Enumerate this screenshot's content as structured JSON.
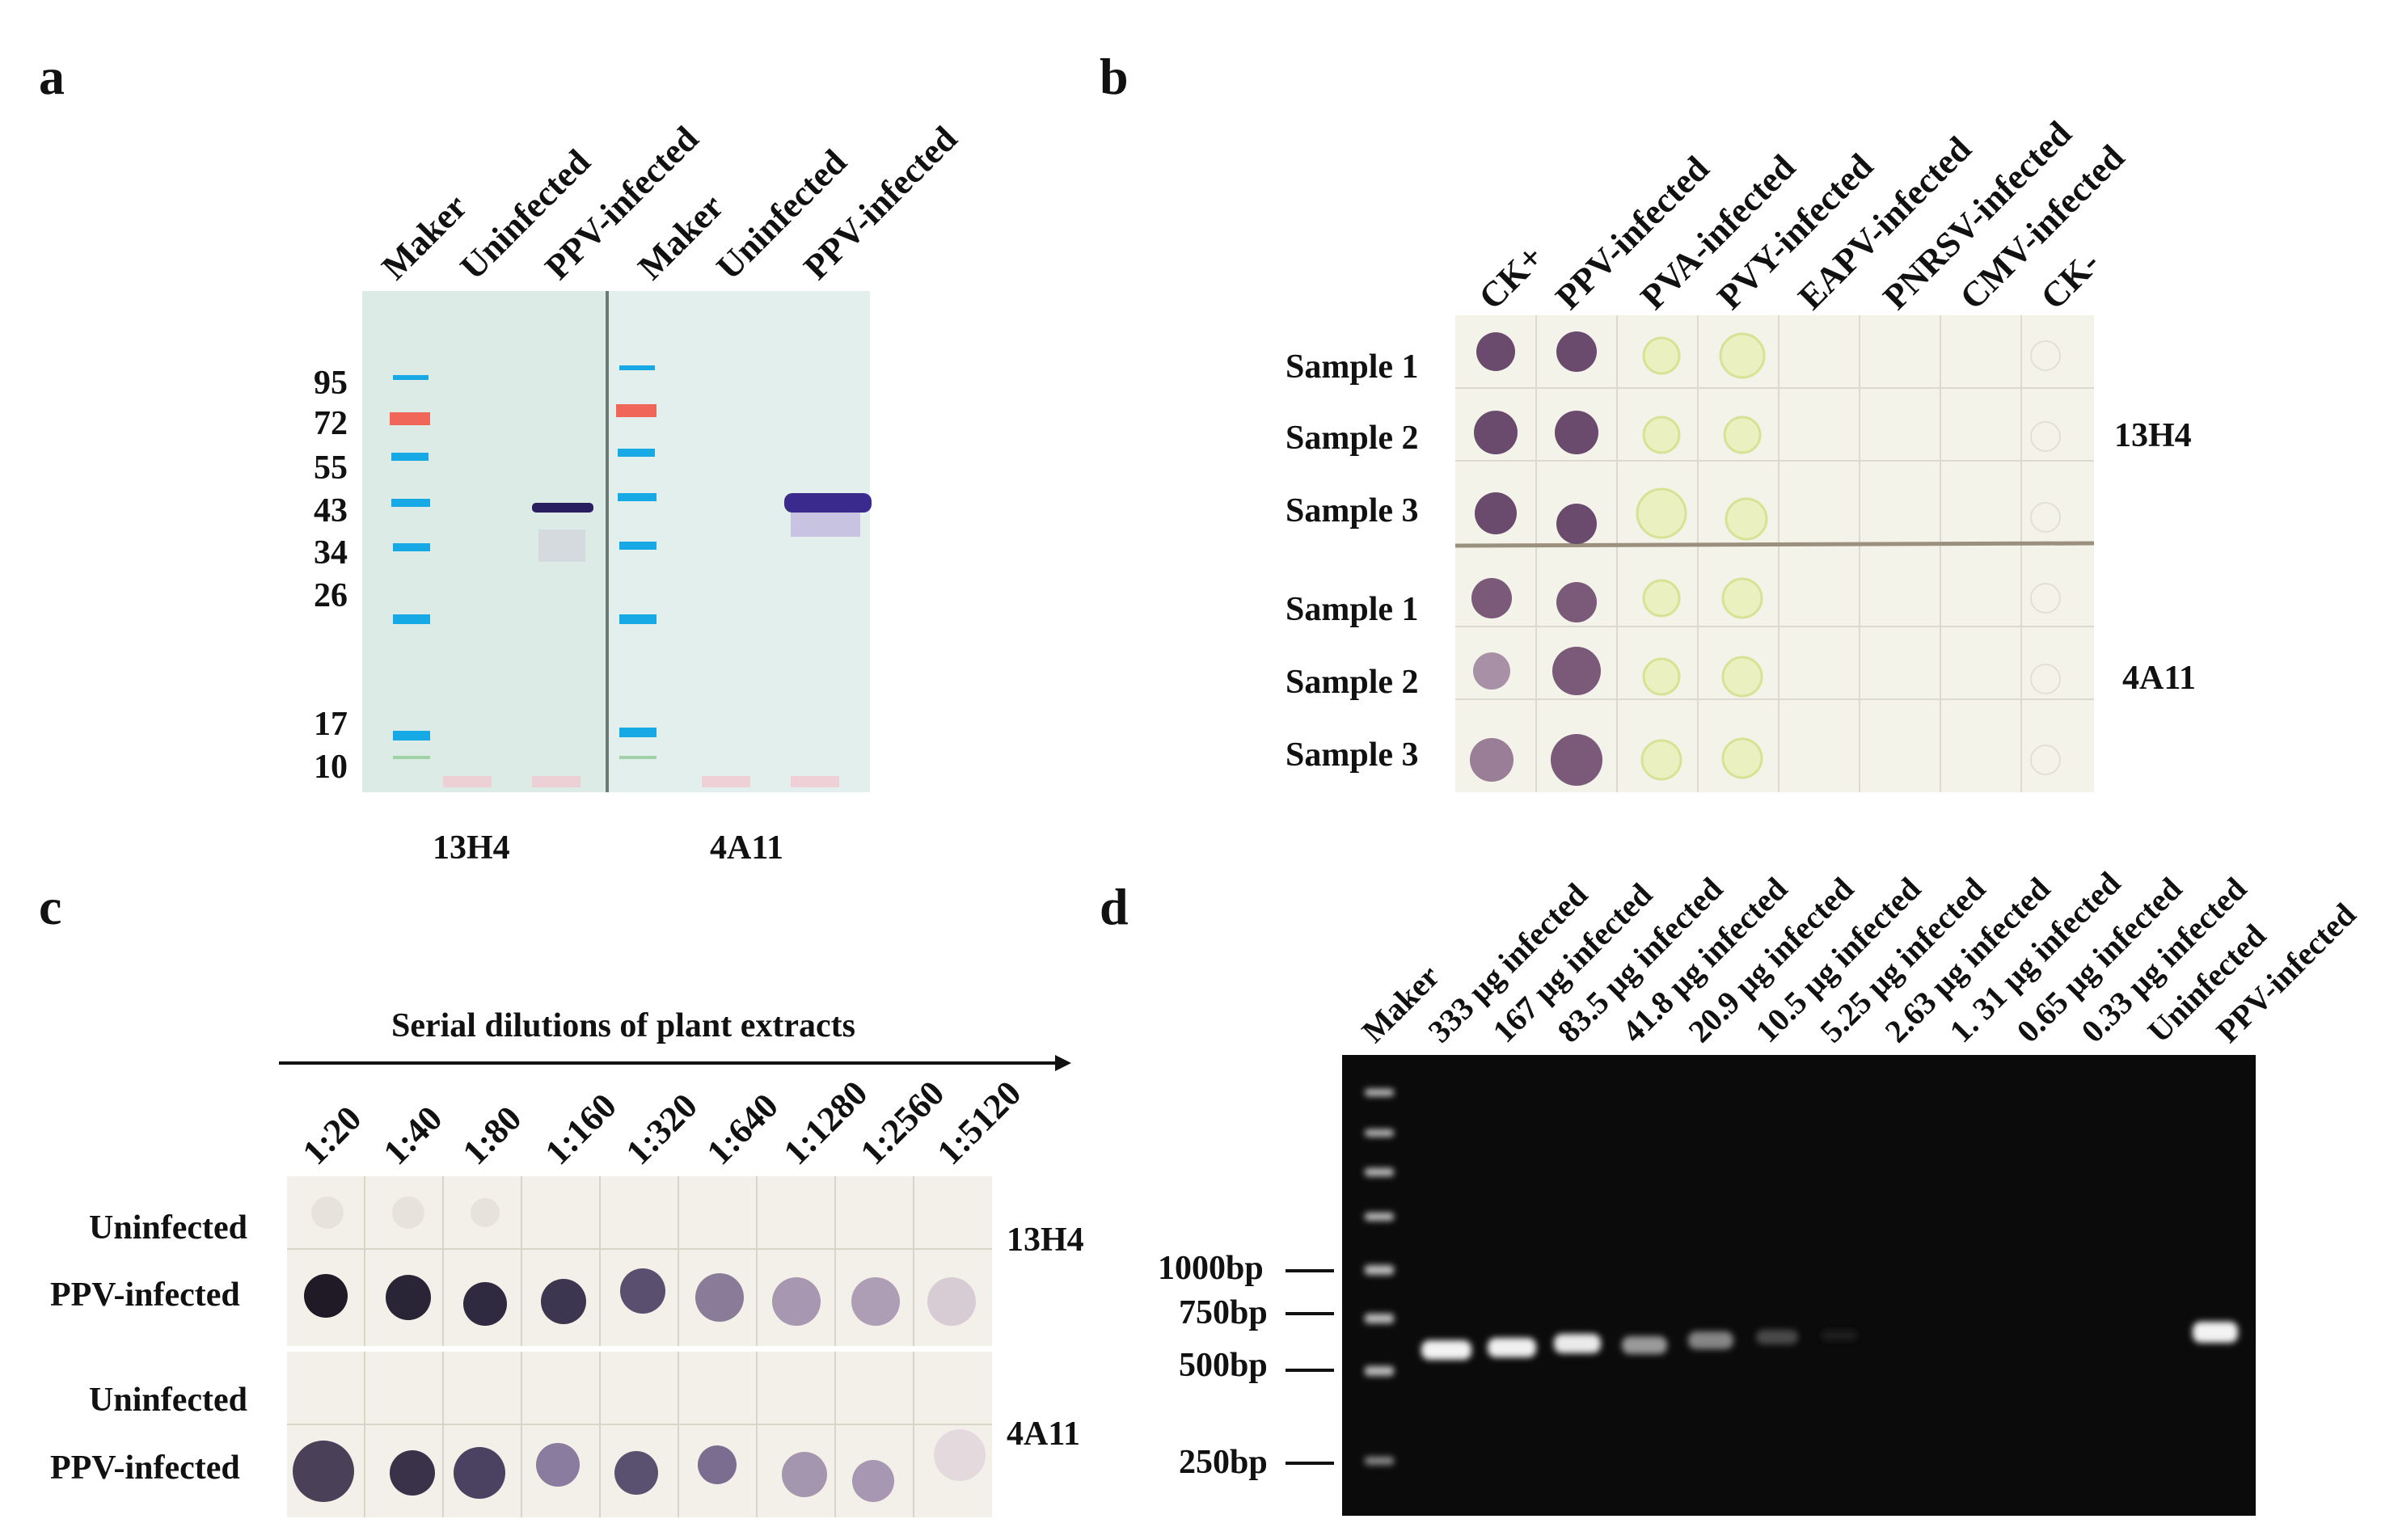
{
  "panels": {
    "a": {
      "letter": "a",
      "lanes": [
        "Maker",
        "Uninfected",
        "PPV-infected",
        "Maker",
        "Uninfected",
        "PPV-infected"
      ],
      "markers": [
        "95",
        "72",
        "55",
        "43",
        "34",
        "26",
        "17",
        "10"
      ],
      "antibodies": [
        "13H4",
        "4A11"
      ]
    },
    "b": {
      "letter": "b",
      "columns": [
        "CK+",
        "PPV-infected",
        "PVA-infected",
        "PVY-infected",
        "EAPV-infected",
        "PNRSV-infected",
        "CMV-infected",
        "CK-"
      ],
      "rows": [
        "Sample 1",
        "Sample 2",
        "Sample 3",
        "Sample 1",
        "Sample 2",
        "Sample 3"
      ],
      "antibodies": [
        "13H4",
        "4A11"
      ]
    },
    "c": {
      "letter": "c",
      "title": "Serial dilutions of plant extracts",
      "dilutions": [
        "1:20",
        "1:40",
        "1:80",
        "1:160",
        "1:320",
        "1:640",
        "1:1280",
        "1:2560",
        "1:5120"
      ],
      "rows": [
        "Uninfected",
        "PPV-infected",
        "Uninfected",
        "PPV-infected"
      ],
      "antibodies": [
        "13H4",
        "4A11"
      ]
    },
    "d": {
      "letter": "d",
      "lanes": [
        "Maker",
        "333 µg infected",
        "167 µg infected",
        "83.5 µg infected",
        "41.8 µg infected",
        "20.9 µg infected",
        "10.5 µg infected",
        "5.25 µg infected",
        "2.63 µg infected",
        "1. 31 µg infected",
        "0.65 µg infected",
        "0.33 µg infected",
        "Uninfected",
        "PPV-infected"
      ],
      "sizes": [
        "1000bp",
        "750bp",
        "500bp",
        "250bp"
      ]
    }
  },
  "colors": {
    "blot_bg": "#e3efec",
    "blue_marker": "#17a9e6",
    "red_marker": "#f0675a",
    "band": "#3a2a6e",
    "dot_purple": "#6a4b6e",
    "dot_yellow": "#e5ecb8",
    "gel_bg": "#0b0b0b"
  }
}
